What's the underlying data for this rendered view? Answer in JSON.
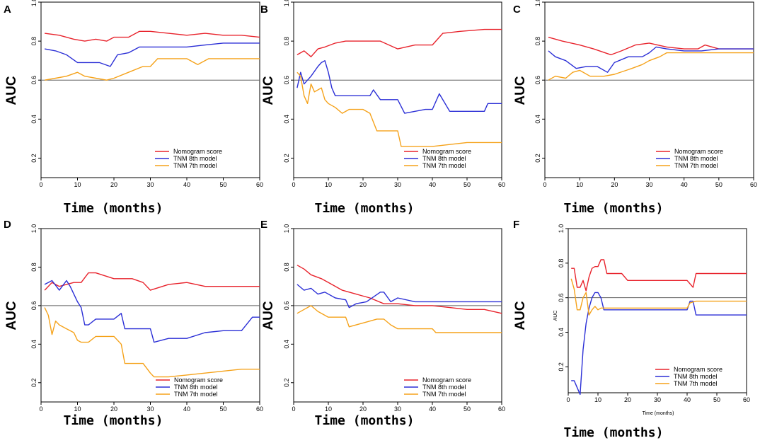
{
  "colors": {
    "nomogram": "#e8232c",
    "tnm8": "#2b2fd6",
    "tnm7": "#f5a21a",
    "ref": "#606060"
  },
  "chart_data": [
    {
      "type": "line",
      "panel_label": "A",
      "ylabel": "AUC",
      "xlabel": "Time (months)",
      "xlim": [
        0,
        60
      ],
      "ylim": [
        0.1,
        1.0
      ],
      "xticks": [
        "0",
        "10",
        "20",
        "30",
        "40",
        "50",
        "60"
      ],
      "yticks": [
        "0.2",
        "0.4",
        "0.6",
        "0.8",
        "1.0"
      ],
      "reference_line": 0.6,
      "legend": [
        "Nomogram score",
        "TNM 8th model",
        "TNM 7th model"
      ],
      "series": [
        {
          "name": "Nomogram score",
          "x": [
            1,
            5,
            9,
            12,
            15,
            18,
            20,
            24,
            27,
            30,
            35,
            40,
            45,
            50,
            55,
            60
          ],
          "y": [
            0.84,
            0.83,
            0.81,
            0.8,
            0.81,
            0.8,
            0.82,
            0.82,
            0.85,
            0.85,
            0.84,
            0.83,
            0.84,
            0.83,
            0.83,
            0.82
          ]
        },
        {
          "name": "TNM 8th model",
          "x": [
            1,
            4,
            7,
            10,
            13,
            16,
            19,
            21,
            24,
            27,
            30,
            34,
            40,
            45,
            50,
            55,
            60
          ],
          "y": [
            0.76,
            0.75,
            0.73,
            0.69,
            0.69,
            0.69,
            0.67,
            0.73,
            0.74,
            0.77,
            0.77,
            0.77,
            0.77,
            0.78,
            0.79,
            0.79,
            0.79
          ]
        },
        {
          "name": "TNM 7th model",
          "x": [
            1,
            4,
            7,
            10,
            12,
            15,
            18,
            20,
            24,
            28,
            30,
            32,
            35,
            40,
            43,
            46,
            50,
            55,
            60
          ],
          "y": [
            0.6,
            0.61,
            0.62,
            0.64,
            0.62,
            0.61,
            0.6,
            0.61,
            0.64,
            0.67,
            0.67,
            0.71,
            0.71,
            0.71,
            0.68,
            0.71,
            0.71,
            0.71,
            0.71
          ]
        }
      ]
    },
    {
      "type": "line",
      "panel_label": "B",
      "ylabel": "AUC",
      "xlabel": "Time (months)",
      "xlim": [
        0,
        60
      ],
      "ylim": [
        0.1,
        1.0
      ],
      "xticks": [
        "0",
        "10",
        "20",
        "30",
        "40",
        "50",
        "60"
      ],
      "yticks": [
        "0.2",
        "0.4",
        "0.6",
        "0.8",
        "1.0"
      ],
      "reference_line": 0.6,
      "legend": [
        "Nomogram score",
        "TNM 8th model",
        "TNM 7th model"
      ],
      "series": [
        {
          "name": "Nomogram score",
          "x": [
            1,
            3,
            5,
            7,
            9,
            12,
            15,
            20,
            25,
            30,
            35,
            40,
            43,
            48,
            55,
            60
          ],
          "y": [
            0.73,
            0.75,
            0.72,
            0.76,
            0.77,
            0.79,
            0.8,
            0.8,
            0.8,
            0.76,
            0.78,
            0.78,
            0.84,
            0.85,
            0.86,
            0.86
          ]
        },
        {
          "name": "TNM 8th model",
          "x": [
            1,
            2,
            3,
            5,
            7,
            8,
            9,
            10,
            11,
            12,
            16,
            22,
            23,
            25,
            30,
            32,
            38,
            40,
            42,
            45,
            50,
            55,
            56,
            58,
            60
          ],
          "y": [
            0.56,
            0.64,
            0.58,
            0.62,
            0.67,
            0.69,
            0.7,
            0.64,
            0.56,
            0.52,
            0.52,
            0.52,
            0.55,
            0.5,
            0.5,
            0.43,
            0.45,
            0.45,
            0.53,
            0.44,
            0.44,
            0.44,
            0.48,
            0.48,
            0.48
          ]
        },
        {
          "name": "TNM 7th model",
          "x": [
            1,
            2,
            3,
            4,
            5,
            6,
            8,
            9,
            10,
            12,
            14,
            16,
            20,
            22,
            24,
            26,
            30,
            31,
            35,
            40,
            45,
            50,
            55,
            60
          ],
          "y": [
            0.64,
            0.62,
            0.52,
            0.48,
            0.58,
            0.54,
            0.56,
            0.5,
            0.48,
            0.46,
            0.43,
            0.45,
            0.45,
            0.43,
            0.34,
            0.34,
            0.34,
            0.26,
            0.26,
            0.26,
            0.27,
            0.28,
            0.28,
            0.28
          ]
        }
      ]
    },
    {
      "type": "line",
      "panel_label": "C",
      "ylabel": "AUC",
      "xlabel": "Time (months)",
      "xlim": [
        0,
        60
      ],
      "ylim": [
        0.1,
        1.0
      ],
      "xticks": [
        "0",
        "10",
        "20",
        "30",
        "40",
        "50",
        "60"
      ],
      "yticks": [
        "0.2",
        "0.4",
        "0.6",
        "0.8",
        "1.0"
      ],
      "reference_line": 0.6,
      "legend": [
        "Nomogram score",
        "TNM 8th model",
        "TNM 7th model"
      ],
      "series": [
        {
          "name": "Nomogram score",
          "x": [
            1,
            5,
            10,
            14,
            19,
            22,
            26,
            30,
            35,
            40,
            44,
            46,
            50,
            55,
            60
          ],
          "y": [
            0.82,
            0.8,
            0.78,
            0.76,
            0.73,
            0.75,
            0.78,
            0.79,
            0.77,
            0.76,
            0.76,
            0.78,
            0.76,
            0.76,
            0.76
          ]
        },
        {
          "name": "TNM 8th model",
          "x": [
            1,
            3,
            6,
            9,
            12,
            15,
            18,
            20,
            24,
            28,
            30,
            32,
            35,
            40,
            45,
            50,
            55,
            60
          ],
          "y": [
            0.75,
            0.72,
            0.7,
            0.66,
            0.67,
            0.67,
            0.64,
            0.69,
            0.72,
            0.72,
            0.74,
            0.77,
            0.76,
            0.75,
            0.75,
            0.76,
            0.76,
            0.76
          ]
        },
        {
          "name": "TNM 7th model",
          "x": [
            1,
            3,
            6,
            8,
            10,
            13,
            17,
            20,
            25,
            28,
            30,
            33,
            35,
            40,
            45,
            50,
            55,
            60
          ],
          "y": [
            0.6,
            0.62,
            0.61,
            0.64,
            0.65,
            0.62,
            0.62,
            0.63,
            0.66,
            0.68,
            0.7,
            0.72,
            0.74,
            0.74,
            0.74,
            0.74,
            0.74,
            0.74
          ]
        }
      ]
    },
    {
      "type": "line",
      "panel_label": "D",
      "ylabel": "AUC",
      "xlabel": "Time (months)",
      "xlim": [
        0,
        60
      ],
      "ylim": [
        0.1,
        1.0
      ],
      "xticks": [
        "0",
        "10",
        "20",
        "30",
        "40",
        "50",
        "60"
      ],
      "yticks": [
        "0.2",
        "0.4",
        "0.6",
        "0.8",
        "1.0"
      ],
      "reference_line": 0.6,
      "legend": [
        "Nomogram score",
        "TNM 8th model",
        "TNM 7th model"
      ],
      "series": [
        {
          "name": "Nomogram score",
          "x": [
            1,
            3,
            5,
            7,
            9,
            11,
            13,
            15,
            20,
            25,
            28,
            30,
            35,
            40,
            45,
            50,
            55,
            60
          ],
          "y": [
            0.68,
            0.72,
            0.7,
            0.71,
            0.72,
            0.72,
            0.77,
            0.77,
            0.74,
            0.74,
            0.72,
            0.68,
            0.71,
            0.72,
            0.7,
            0.7,
            0.7,
            0.7
          ]
        },
        {
          "name": "TNM 8th model",
          "x": [
            1,
            3,
            5,
            7,
            8,
            10,
            11,
            12,
            13,
            15,
            20,
            22,
            23,
            28,
            30,
            31,
            35,
            40,
            45,
            50,
            55,
            58,
            60
          ],
          "y": [
            0.71,
            0.73,
            0.68,
            0.73,
            0.7,
            0.62,
            0.59,
            0.5,
            0.5,
            0.53,
            0.53,
            0.56,
            0.48,
            0.48,
            0.48,
            0.41,
            0.43,
            0.43,
            0.46,
            0.47,
            0.47,
            0.54,
            0.54
          ]
        },
        {
          "name": "TNM 7th model",
          "x": [
            1,
            2,
            3,
            4,
            5,
            7,
            9,
            10,
            11,
            13,
            15,
            17,
            20,
            22,
            23,
            25,
            28,
            30,
            31,
            35,
            40,
            45,
            50,
            55,
            60
          ],
          "y": [
            0.59,
            0.55,
            0.45,
            0.52,
            0.5,
            0.48,
            0.46,
            0.42,
            0.41,
            0.41,
            0.44,
            0.44,
            0.44,
            0.4,
            0.3,
            0.3,
            0.3,
            0.25,
            0.23,
            0.23,
            0.24,
            0.25,
            0.26,
            0.27,
            0.27
          ]
        }
      ]
    },
    {
      "type": "line",
      "panel_label": "E",
      "ylabel": "AUC",
      "xlabel": "Time (months)",
      "xlim": [
        0,
        60
      ],
      "ylim": [
        0.1,
        1.0
      ],
      "xticks": [
        "0",
        "10",
        "20",
        "30",
        "40",
        "50",
        "60"
      ],
      "yticks": [
        "0.2",
        "0.4",
        "0.6",
        "0.8",
        "1.0"
      ],
      "reference_line": 0.6,
      "legend": [
        "Nomogram score",
        "TNM 8th model",
        "TNM 7th model"
      ],
      "series": [
        {
          "name": "Nomogram score",
          "x": [
            1,
            3,
            5,
            8,
            11,
            14,
            18,
            22,
            26,
            30,
            35,
            40,
            45,
            50,
            55,
            60
          ],
          "y": [
            0.81,
            0.79,
            0.76,
            0.74,
            0.71,
            0.68,
            0.66,
            0.64,
            0.61,
            0.61,
            0.6,
            0.6,
            0.59,
            0.58,
            0.58,
            0.56
          ]
        },
        {
          "name": "TNM 8th model",
          "x": [
            1,
            3,
            5,
            7,
            9,
            12,
            15,
            16,
            18,
            21,
            25,
            26,
            28,
            30,
            35,
            40,
            45,
            50,
            55,
            60
          ],
          "y": [
            0.71,
            0.68,
            0.69,
            0.66,
            0.67,
            0.64,
            0.63,
            0.59,
            0.61,
            0.62,
            0.67,
            0.67,
            0.62,
            0.64,
            0.62,
            0.62,
            0.62,
            0.62,
            0.62,
            0.62
          ]
        },
        {
          "name": "TNM 7th model",
          "x": [
            1,
            3,
            5,
            7,
            10,
            15,
            16,
            20,
            24,
            26,
            28,
            30,
            35,
            40,
            41,
            45,
            50,
            55,
            60
          ],
          "y": [
            0.56,
            0.58,
            0.6,
            0.57,
            0.54,
            0.54,
            0.49,
            0.51,
            0.53,
            0.53,
            0.5,
            0.48,
            0.48,
            0.48,
            0.46,
            0.46,
            0.46,
            0.46,
            0.46
          ]
        }
      ]
    },
    {
      "type": "line",
      "panel_label": "F",
      "ylabel": "AUC",
      "xlabel": "Time (months)",
      "inner_ylabel": "AUC",
      "inner_xlabel": "Time (months)",
      "xlim": [
        0,
        60
      ],
      "ylim": [
        0.05,
        1.0
      ],
      "xticks": [
        "0",
        "10",
        "20",
        "30",
        "40",
        "50",
        "60"
      ],
      "yticks": [
        "0.2",
        "0.4",
        "0.6",
        "0.8",
        "1.0"
      ],
      "reference_line": 0.6,
      "legend": [
        "Nomogram score",
        "TNM 8th model",
        "TNM 7th model"
      ],
      "series": [
        {
          "name": "Nomogram score",
          "x": [
            1,
            2,
            3,
            4,
            5,
            6,
            7,
            8,
            9,
            10,
            11,
            12,
            13,
            14,
            18,
            20,
            25,
            30,
            35,
            40,
            42,
            43,
            45,
            50,
            55,
            60
          ],
          "y": [
            0.77,
            0.77,
            0.66,
            0.66,
            0.7,
            0.64,
            0.72,
            0.77,
            0.78,
            0.78,
            0.82,
            0.82,
            0.74,
            0.74,
            0.74,
            0.7,
            0.7,
            0.7,
            0.7,
            0.7,
            0.66,
            0.74,
            0.74,
            0.74,
            0.74,
            0.74
          ]
        },
        {
          "name": "TNM 8th model",
          "x": [
            1,
            2,
            3,
            4,
            5,
            6,
            7,
            8,
            9,
            10,
            11,
            12,
            13,
            20,
            30,
            40,
            41,
            42,
            43,
            45,
            50,
            55,
            60
          ],
          "y": [
            0.12,
            0.12,
            0.08,
            0.04,
            0.3,
            0.45,
            0.54,
            0.6,
            0.63,
            0.63,
            0.6,
            0.53,
            0.53,
            0.53,
            0.53,
            0.53,
            0.58,
            0.58,
            0.5,
            0.5,
            0.5,
            0.5,
            0.5
          ]
        },
        {
          "name": "TNM 7th model",
          "x": [
            1,
            2,
            3,
            4,
            5,
            6,
            7,
            8,
            9,
            10,
            11,
            12,
            13,
            20,
            30,
            40,
            41,
            43,
            50,
            55,
            60
          ],
          "y": [
            0.71,
            0.65,
            0.53,
            0.53,
            0.6,
            0.63,
            0.5,
            0.53,
            0.55,
            0.53,
            0.54,
            0.54,
            0.54,
            0.54,
            0.54,
            0.54,
            0.57,
            0.58,
            0.58,
            0.58,
            0.58
          ]
        }
      ]
    }
  ]
}
